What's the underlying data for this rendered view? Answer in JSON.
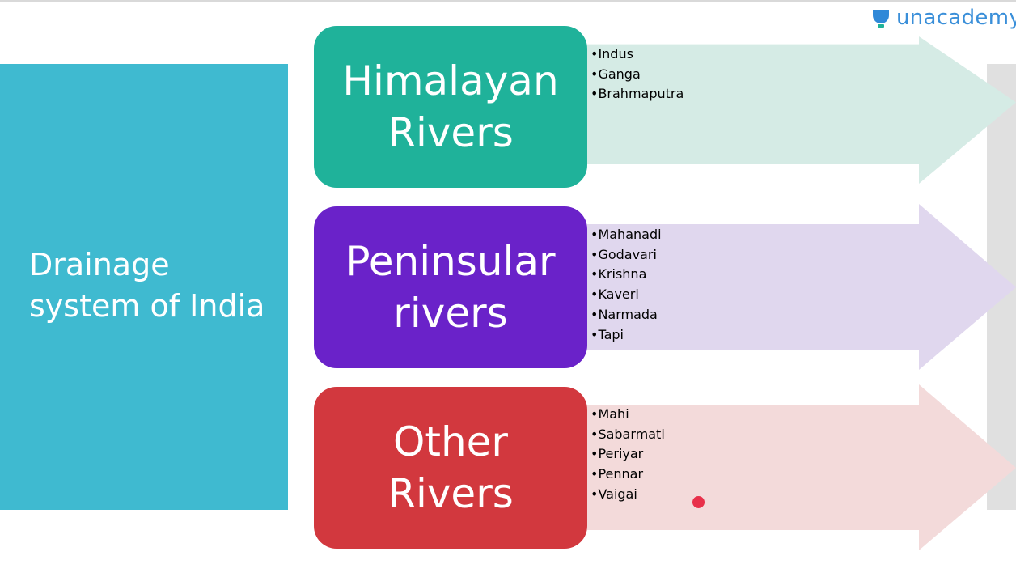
{
  "brand": {
    "name": "unacademy"
  },
  "colors": {
    "left_panel": "#3fbad0",
    "himalayan_box": "#1fb29a",
    "himalayan_arrow": "#d5ebe5",
    "peninsular_box": "#6a22c9",
    "peninsular_arrow": "#e0d7ee",
    "other_box": "#d2383e",
    "other_arrow": "#f3dada",
    "pointer": "#e8304a"
  },
  "title": {
    "line1": "Drainage",
    "line2": "system of India"
  },
  "categories": [
    {
      "line1": "Himalayan",
      "line2": "Rivers",
      "rivers": [
        "•Indus",
        "•Ganga",
        "•Brahmaputra"
      ]
    },
    {
      "line1": "Peninsular",
      "line2": "rivers",
      "rivers": [
        "•Mahanadi",
        "•Godavari",
        "•Krishna",
        "•Kaveri",
        "•Narmada",
        "•Tapi"
      ]
    },
    {
      "line1": "Other",
      "line2": "Rivers",
      "rivers": [
        "•Mahi",
        "•Sabarmati",
        "•Periyar",
        "•Pennar",
        "•Vaigai"
      ]
    }
  ]
}
